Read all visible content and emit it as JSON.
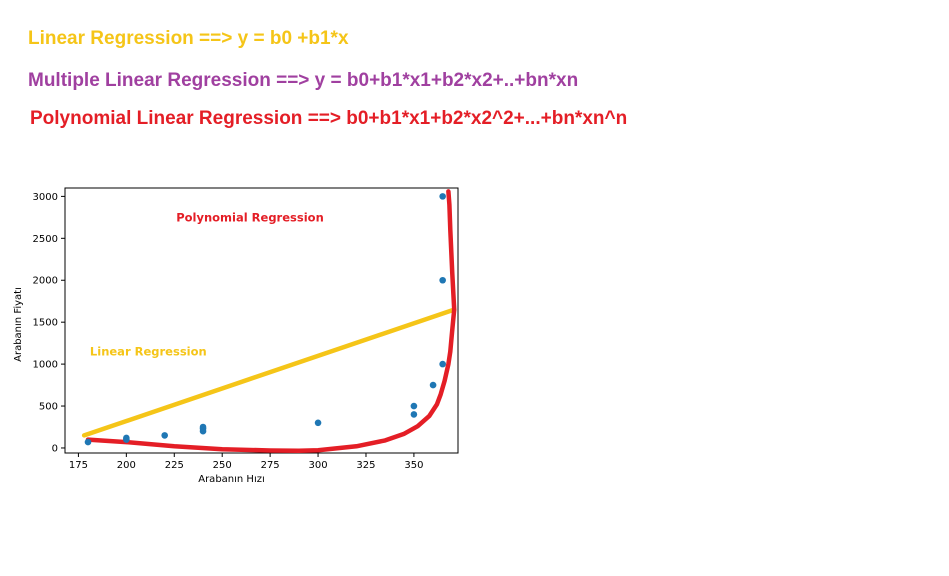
{
  "formulas": [
    {
      "text": "Linear Regression ==> y = b0 +b1*x",
      "color": "#f5c518"
    },
    {
      "text": "Multiple Linear Regression ==> y = b0+b1*x1+b2*x2+..+bn*xn",
      "color": "#a040a0"
    },
    {
      "text": "Polynomial Linear Regression ==> b0+b1*x1+b2*x2^2+...+bn*xn^n",
      "color": "#e41e26"
    }
  ],
  "chart_data": {
    "type": "scatter",
    "xlabel": "Arabanın Hızı",
    "ylabel": "Arabanın Fiyatı",
    "xlim": [
      168,
      373
    ],
    "ylim": [
      -60,
      3100
    ],
    "xticks": [
      175,
      200,
      225,
      250,
      275,
      300,
      325,
      350
    ],
    "yticks": [
      0,
      500,
      1000,
      1500,
      2000,
      2500,
      3000
    ],
    "points": {
      "color": "#1f77b4",
      "x": [
        180,
        200,
        200,
        220,
        240,
        240,
        240,
        300,
        350,
        350,
        360,
        365,
        365,
        365
      ],
      "y": [
        70,
        100,
        120,
        150,
        200,
        230,
        250,
        300,
        400,
        500,
        750,
        1000,
        2000,
        3000
      ]
    },
    "linear_fit": {
      "label": "Linear Regression",
      "color": "#f5c518",
      "x": [
        178,
        371
      ],
      "y": [
        150,
        1650
      ]
    },
    "polynomial_fit": {
      "label": "Polynomial Regression",
      "color": "#e41e26",
      "x": [
        180,
        200,
        225,
        250,
        275,
        290,
        300,
        320,
        335,
        345,
        352,
        358,
        362,
        364,
        366,
        368,
        369,
        370,
        371,
        370,
        369,
        368.5,
        368
      ],
      "y": [
        100,
        70,
        20,
        -15,
        -30,
        -32,
        -28,
        20,
        90,
        170,
        260,
        380,
        520,
        640,
        800,
        1000,
        1150,
        1400,
        1650,
        2100,
        2600,
        2900,
        3060
      ]
    }
  }
}
